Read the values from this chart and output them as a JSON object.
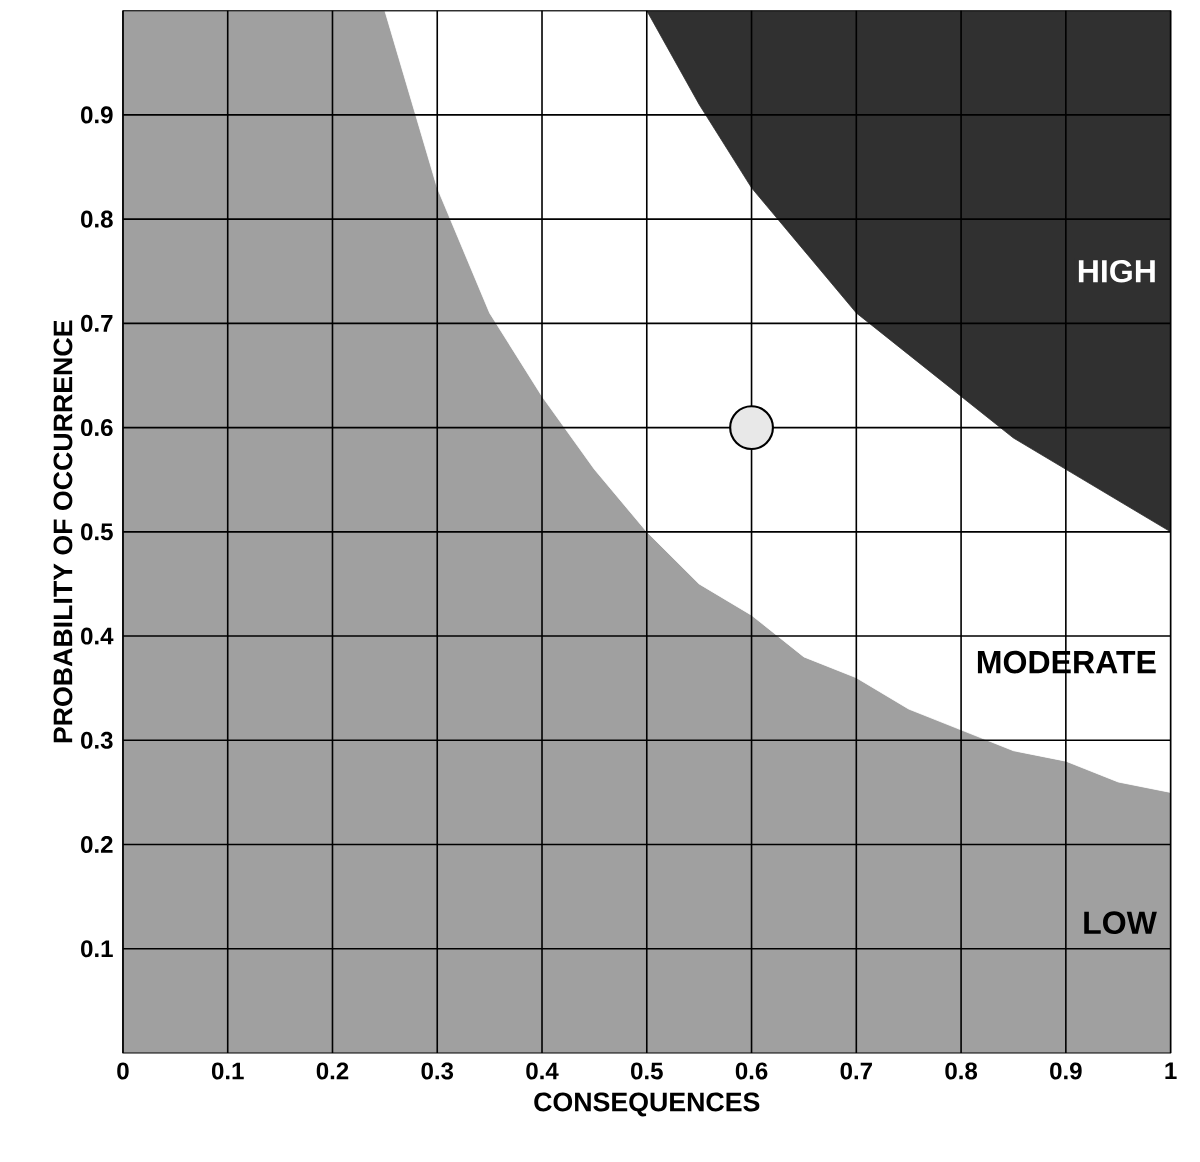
{
  "chart_data": {
    "type": "area",
    "xlabel": "CONSEQUENCES",
    "ylabel": "PROBABILITY OF OCCURRENCE",
    "stacked": true,
    "x": [
      0,
      0.1,
      0.2,
      0.25,
      0.3,
      0.35,
      0.4,
      0.45,
      0.5,
      0.55,
      0.6,
      0.65,
      0.7,
      0.75,
      0.8,
      0.85,
      0.9,
      0.95,
      1
    ],
    "series": [
      {
        "name": "LOW",
        "color": "#a0a0a0",
        "values": [
          1,
          1,
          1,
          1,
          0.83,
          0.71,
          0.63,
          0.56,
          0.5,
          0.45,
          0.42,
          0.38,
          0.36,
          0.33,
          0.31,
          0.29,
          0.28,
          0.26,
          0.25
        ]
      },
      {
        "name": "MODERATE",
        "color": "#ffffff",
        "values": [
          0,
          0,
          0,
          0,
          0.17,
          0.29,
          0.37,
          0.44,
          0.5,
          0.46,
          0.41,
          0.39,
          0.35,
          0.34,
          0.32,
          0.3,
          0.28,
          0.27,
          0.25
        ]
      },
      {
        "name": "HIGH",
        "color": "#303030",
        "values": [
          0,
          0,
          0,
          0,
          0,
          0,
          0,
          0,
          0,
          0.09,
          0.17,
          0.23,
          0.29,
          0.33,
          0.37,
          0.41,
          0.44,
          0.47,
          0.5
        ]
      },
      {
        "type": "scatter",
        "color": "#e8e8e8",
        "x": [
          0.6
        ],
        "values": [
          0.6
        ]
      }
    ],
    "xlim": [
      0,
      1
    ],
    "ylim": [
      0,
      1
    ],
    "xticks": [
      0,
      0.1,
      0.2,
      0.3,
      0.4,
      0.5,
      0.6,
      0.7,
      0.8,
      0.9,
      1
    ],
    "yticks": [
      0.1,
      0.2,
      0.3,
      0.4,
      0.5,
      0.6,
      0.7,
      0.8,
      0.9
    ],
    "grid": true
  }
}
